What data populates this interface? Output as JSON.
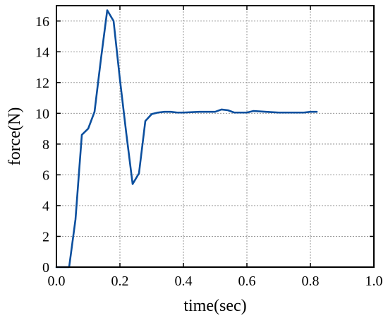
{
  "chart_data": {
    "type": "line",
    "title": "",
    "xlabel": "time(sec)",
    "ylabel": "force(N)",
    "xlim": [
      0,
      1.0
    ],
    "ylim": [
      0,
      17
    ],
    "grid": true,
    "x_ticks": [
      0.0,
      0.2,
      0.4,
      0.6,
      0.8,
      1.0
    ],
    "x_tick_labels": [
      "0.0",
      "0.2",
      "0.4",
      "0.6",
      "0.8",
      "1.0"
    ],
    "y_ticks": [
      0,
      2,
      4,
      6,
      8,
      10,
      12,
      14,
      16
    ],
    "y_tick_labels": [
      "0",
      "2",
      "4",
      "6",
      "8",
      "10",
      "12",
      "14",
      "16"
    ],
    "series": [
      {
        "color": "#0b4f9e",
        "x": [
          0.0,
          0.04,
          0.06,
          0.08,
          0.1,
          0.12,
          0.14,
          0.16,
          0.18,
          0.2,
          0.22,
          0.24,
          0.26,
          0.28,
          0.3,
          0.32,
          0.34,
          0.36,
          0.38,
          0.4,
          0.45,
          0.5,
          0.52,
          0.54,
          0.56,
          0.6,
          0.62,
          0.66,
          0.7,
          0.74,
          0.78,
          0.8,
          0.82
        ],
        "y": [
          0.0,
          0.0,
          3.1,
          8.6,
          9.0,
          10.1,
          13.5,
          16.7,
          16.0,
          12.2,
          8.7,
          5.4,
          6.1,
          9.5,
          9.95,
          10.05,
          10.1,
          10.1,
          10.05,
          10.05,
          10.1,
          10.1,
          10.25,
          10.2,
          10.05,
          10.05,
          10.15,
          10.1,
          10.05,
          10.05,
          10.05,
          10.1,
          10.1
        ]
      }
    ]
  }
}
